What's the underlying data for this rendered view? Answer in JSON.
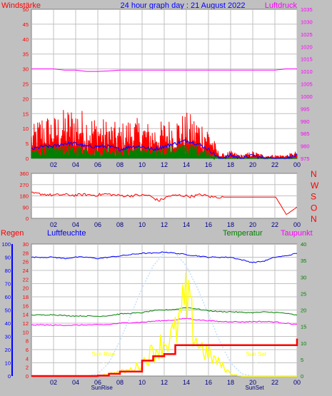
{
  "title": "24 hour graph day : 21 August 2022",
  "colors": {
    "background": "#c0c0c0",
    "plot_bg": "#ffffff",
    "grid": "#c0c0c0",
    "wind": "#ff0000",
    "wind_avg": "#0000ff",
    "wind_gust_fill": "#008000",
    "pressure": "#ff00ff",
    "direction": "#ff0000",
    "rain": "#ff0000",
    "humidity": "#0000ff",
    "temperature": "#008000",
    "dewpoint": "#ff00ff",
    "solar": "#ffff00",
    "solar_theory": "#c0e0ff",
    "sun_label": "#ffff00"
  },
  "time_ticks": [
    "02",
    "04",
    "06",
    "08",
    "10",
    "12",
    "14",
    "16",
    "18",
    "20",
    "22",
    "00"
  ],
  "chart_data": [
    {
      "type": "line",
      "left_label": "Windstärke",
      "right_label": "Luftdruck",
      "left_axis": {
        "ticks": [
          "0",
          "5",
          "10",
          "15",
          "20",
          "25",
          "30",
          "35",
          "40",
          "45",
          "50"
        ],
        "ylim": [
          0,
          50
        ]
      },
      "right_axis": {
        "ticks": [
          "975",
          "980",
          "985",
          "990",
          "995",
          "1000",
          "1005",
          "1010",
          "1015",
          "1020",
          "1025",
          "1030",
          "1035"
        ],
        "ylim": [
          975,
          1035
        ]
      },
      "x": [
        "00:00",
        "01:00",
        "02:00",
        "03:00",
        "04:00",
        "05:00",
        "06:00",
        "07:00",
        "08:00",
        "09:00",
        "10:00",
        "11:00",
        "12:00",
        "13:00",
        "14:00",
        "15:00",
        "16:00",
        "17:00",
        "18:00",
        "19:00",
        "20:00",
        "21:00",
        "22:00",
        "23:00",
        "00:00"
      ],
      "series": [
        {
          "values": [
            8,
            12,
            11,
            13,
            14,
            12,
            11,
            10,
            9,
            11,
            10,
            9,
            10,
            11,
            12,
            11,
            9,
            1,
            2,
            1,
            2,
            1,
            1,
            1,
            2
          ]
        },
        {
          "values": [
            3,
            4,
            4,
            5,
            5,
            4,
            4,
            4,
            3,
            4,
            4,
            3,
            4,
            5,
            6,
            5,
            3,
            0,
            1,
            0,
            1,
            0,
            0,
            0,
            1
          ]
        },
        {
          "values": [
            2,
            3,
            3,
            3,
            3,
            3,
            2,
            3,
            2,
            3,
            3,
            2,
            3,
            3,
            4,
            3,
            2,
            0,
            0,
            0,
            0,
            0,
            0,
            0,
            0
          ]
        },
        {
          "values": [
            1011,
            1011,
            1011,
            1010.5,
            1010.5,
            1010,
            1010,
            1010.2,
            1010.5,
            1010.5,
            1010.5,
            1010.5,
            1010.5,
            1010.5,
            1010.5,
            1010.5,
            1010.5,
            1010.5,
            1010.5,
            1010.5,
            1010.5,
            1010.5,
            1010.5,
            1011,
            1011
          ]
        }
      ]
    },
    {
      "type": "line",
      "left_axis": {
        "ticks": [
          "0",
          "90",
          "180",
          "270",
          "360"
        ],
        "ylim": [
          0,
          360
        ]
      },
      "right_axis": {
        "ticks": [
          "N",
          "O",
          "S",
          "W",
          "N"
        ]
      },
      "x": [
        "00:00",
        "01:00",
        "02:00",
        "03:00",
        "04:00",
        "05:00",
        "06:00",
        "07:00",
        "08:00",
        "09:00",
        "10:00",
        "11:00",
        "12:00",
        "13:00",
        "14:00",
        "15:00",
        "16:00",
        "17:00",
        "18:00",
        "19:00",
        "20:00",
        "21:00",
        "22:00",
        "23:00",
        "23:30",
        "00:00"
      ],
      "series": [
        {
          "values": [
            200,
            195,
            185,
            190,
            185,
            190,
            185,
            195,
            185,
            180,
            185,
            185,
            140,
            180,
            185,
            175,
            190,
            170,
            170,
            170,
            170,
            170,
            170,
            170,
            30,
            90
          ]
        }
      ]
    },
    {
      "type": "line",
      "labels": {
        "rain": "Regen",
        "humidity": "Luftfeuchte",
        "temperature": "Temperatur",
        "dewpoint": "Taupunkt"
      },
      "rain_axis": {
        "ticks": [
          "0",
          "10",
          "20",
          "30",
          "40",
          "50",
          "60",
          "70",
          "80",
          "90",
          "100"
        ],
        "ylim": [
          0,
          100
        ]
      },
      "humidity_axis": {
        "ticks": [
          "0",
          "2",
          "4",
          "6",
          "8",
          "10",
          "12",
          "14",
          "16",
          "18",
          "20",
          "22",
          "24",
          "26",
          "28",
          "30"
        ],
        "ylim": [
          0,
          30
        ]
      },
      "temperature_axis": {
        "ticks": [
          "0",
          "5",
          "10",
          "15",
          "20",
          "25",
          "30",
          "35",
          "40"
        ],
        "ylim": [
          0,
          40
        ]
      },
      "annotations": [
        "Sun Rise",
        "Sun Set",
        "SunRise",
        "SunSet"
      ],
      "x": [
        "00:00",
        "01:00",
        "02:00",
        "03:00",
        "04:00",
        "05:00",
        "06:00",
        "07:00",
        "08:00",
        "09:00",
        "10:00",
        "11:00",
        "12:00",
        "13:00",
        "14:00",
        "15:00",
        "16:00",
        "17:00",
        "18:00",
        "19:00",
        "20:00",
        "21:00",
        "22:00",
        "23:00",
        "00:00"
      ],
      "series": [
        {
          "values": [
            90,
            90,
            90,
            89,
            90,
            90,
            89,
            90,
            91,
            92,
            93,
            93,
            94,
            93,
            92,
            91,
            90,
            90,
            90,
            88,
            86,
            87,
            90,
            91,
            93
          ]
        },
        {
          "values": [
            18.5,
            18.5,
            18.6,
            18.3,
            18.2,
            18.2,
            18.1,
            18.3,
            18.8,
            19,
            19.2,
            19.8,
            20,
            20.2,
            20.8,
            20.3,
            19.8,
            19.5,
            19.5,
            19.3,
            19.2,
            19.4,
            19.3,
            19,
            18.4
          ]
        },
        {
          "values": [
            15.5,
            15.5,
            15.4,
            15.4,
            15.4,
            15.5,
            15.5,
            15.6,
            16,
            16.2,
            16.3,
            16.6,
            16.8,
            17,
            17.5,
            17,
            16.8,
            16.5,
            16.5,
            16.4,
            16.5,
            16.5,
            16.4,
            16,
            15.6
          ]
        },
        {
          "values": [
            0,
            0,
            0,
            0,
            0,
            0,
            0.1,
            0.5,
            1,
            1,
            3.5,
            4.5,
            5,
            7,
            7,
            7,
            7,
            7,
            7,
            7,
            7,
            7,
            7,
            7,
            8.5
          ]
        },
        {
          "values": [
            0,
            0,
            0,
            0,
            0,
            0,
            0,
            0.5,
            1,
            1.5,
            3,
            6,
            8,
            10,
            18,
            8,
            5,
            3,
            0.5,
            0,
            0,
            0,
            0,
            0,
            0
          ]
        },
        {
          "values": [
            0,
            0,
            0,
            0,
            0,
            0,
            0.5,
            3,
            8,
            14,
            20,
            25,
            28,
            28,
            25,
            20,
            14,
            8,
            3,
            0.5,
            0,
            0,
            0,
            0,
            0
          ]
        }
      ]
    }
  ]
}
